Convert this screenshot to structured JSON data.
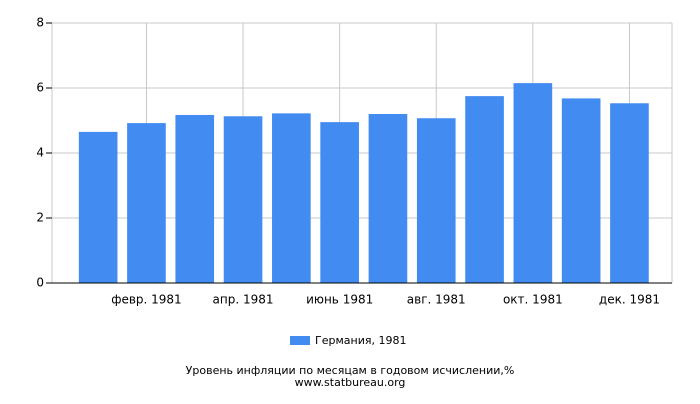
{
  "chart_data": {
    "type": "bar",
    "title": "Уровень инфляции по месяцам в годовом исчислении,%",
    "source": "www.statbureau.org",
    "categories": [
      null,
      "февр. 1981",
      null,
      "апр. 1981",
      null,
      "июнь 1981",
      null,
      "авг. 1981",
      null,
      "окт. 1981",
      null,
      "дек. 1981"
    ],
    "series": [
      {
        "name": "Германия, 1981",
        "color": "#428bf0",
        "values": [
          4.65,
          4.92,
          5.17,
          5.13,
          5.22,
          4.95,
          5.2,
          5.07,
          5.75,
          6.15,
          5.68,
          5.53
        ]
      }
    ],
    "ylim": [
      0,
      8
    ],
    "yticks": [
      0,
      2,
      4,
      6,
      8
    ],
    "grid": true
  }
}
